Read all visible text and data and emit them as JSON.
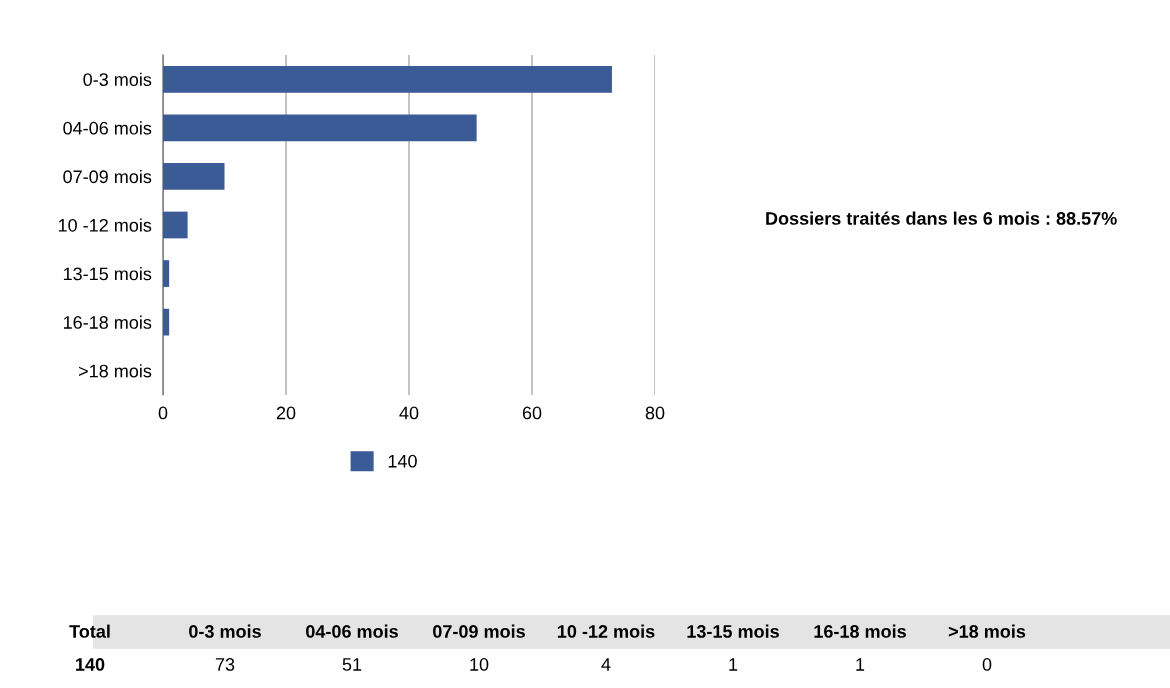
{
  "chart_data": {
    "type": "bar",
    "orientation": "horizontal",
    "categories": [
      "0-3 mois",
      "04-06 mois",
      "07-09 mois",
      "10 -12 mois",
      "13-15 mois",
      "16-18 mois",
      ">18 mois"
    ],
    "series": [
      {
        "name": "140",
        "color": "#3a5b95",
        "values": [
          73,
          51,
          10,
          4,
          1,
          1,
          0
        ]
      }
    ],
    "xlim": [
      0,
      80
    ],
    "xticks": [
      0,
      20,
      40,
      60,
      80
    ],
    "grid": "x",
    "legend": "bottom",
    "annotations": [
      "Dossiers traités dans les 6 mois : 88.57%",
      "Total",
      "0-3 mois",
      "04-06 mois",
      "07-09 mois",
      "10 -12 mois",
      "13-15 mois",
      "16-18 mois",
      ">18 mois",
      "140",
      "73",
      "51",
      "10",
      "4",
      "1",
      "1",
      "0"
    ]
  }
}
